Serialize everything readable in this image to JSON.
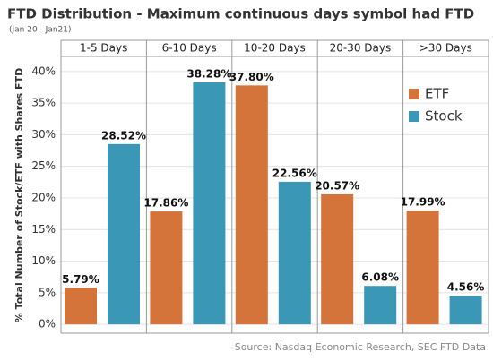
{
  "chart_data": {
    "type": "bar",
    "title": "FTD Distribution - Maximum continuous days symbol had FTD",
    "subtitle": "(Jan 20 - Jan21)",
    "y_label": "% Total Number of Stock/ETF with Shares FTD",
    "source": "Source: Nasdaq Economic Research, SEC FTD Data",
    "categories": [
      "1-5 Days",
      "6-10 Days",
      "10-20 Days",
      "20-30 Days",
      ">30 Days"
    ],
    "series": [
      {
        "name": "ETF",
        "color": "#d4733a",
        "values": [
          5.79,
          17.86,
          37.8,
          20.57,
          17.99
        ],
        "value_labels": [
          "5.79%",
          "17.86%",
          "37.80%",
          "20.57%",
          "17.99%"
        ]
      },
      {
        "name": "Stock",
        "color": "#3a97b5",
        "values": [
          28.52,
          38.28,
          22.56,
          6.08,
          4.56
        ],
        "value_labels": [
          "28.52%",
          "38.28%",
          "22.56%",
          "6.08%",
          "4.56%"
        ]
      }
    ],
    "ylim": [
      -1.4,
      42.1
    ],
    "yticks": [
      {
        "value": 0,
        "label": "0%"
      },
      {
        "value": 5,
        "label": "5%"
      },
      {
        "value": 10,
        "label": "10%"
      },
      {
        "value": 15,
        "label": "15%"
      },
      {
        "value": 20,
        "label": "20%"
      },
      {
        "value": 25,
        "label": "25%"
      },
      {
        "value": 30,
        "label": "30%"
      },
      {
        "value": 35,
        "label": "35%"
      },
      {
        "value": 40,
        "label": "40%"
      }
    ],
    "grid": true,
    "legend_position": "upper right"
  }
}
